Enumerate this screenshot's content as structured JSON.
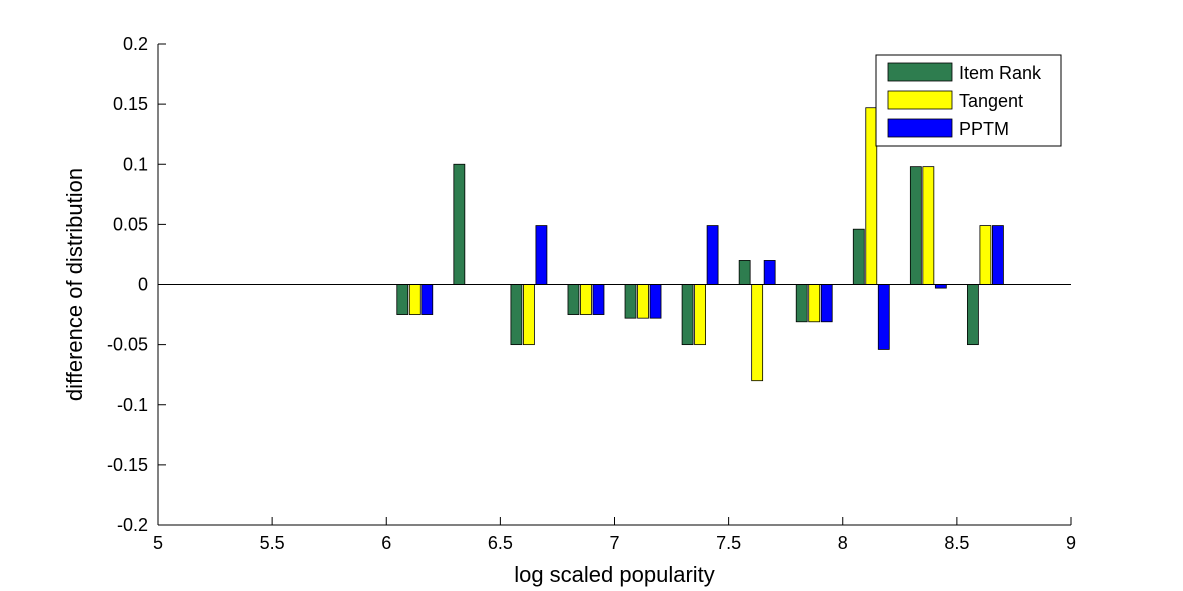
{
  "chart_data": {
    "type": "bar",
    "title": "",
    "xlabel": "log scaled popularity",
    "ylabel": "difference of distribution",
    "xlim": [
      5,
      9
    ],
    "ylim": [
      -0.2,
      0.2
    ],
    "xticks": [
      5,
      5.5,
      6,
      6.5,
      7,
      7.5,
      8,
      8.5,
      9
    ],
    "xtick_labels": [
      "5",
      "5.5",
      "6",
      "6.5",
      "7",
      "7.5",
      "8",
      "8.5",
      "9"
    ],
    "yticks": [
      -0.2,
      -0.15,
      -0.1,
      -0.05,
      0,
      0.05,
      0.1,
      0.15,
      0.2
    ],
    "ytick_labels": [
      "-0.2",
      "-0.15",
      "-0.1",
      "-0.05",
      "0",
      "0.05",
      "0.1",
      "0.15",
      "0.2"
    ],
    "grid": false,
    "legend_position": "top-right",
    "x": [
      6.125,
      6.375,
      6.625,
      6.875,
      7.125,
      7.375,
      7.625,
      7.875,
      8.125,
      8.375,
      8.625
    ],
    "series": [
      {
        "name": "Item Rank",
        "color": "#2e7d4f",
        "values": [
          -0.025,
          0.1,
          -0.05,
          -0.025,
          -0.028,
          -0.05,
          0.02,
          -0.031,
          0.046,
          0.098,
          -0.05
        ]
      },
      {
        "name": "Tangent",
        "color": "#ffff00",
        "values": [
          -0.025,
          0,
          -0.05,
          -0.025,
          -0.028,
          -0.05,
          -0.08,
          -0.031,
          0.147,
          0.098,
          0.049
        ]
      },
      {
        "name": "PPTM",
        "color": "#0000ff",
        "values": [
          -0.025,
          0,
          0.049,
          -0.025,
          -0.028,
          0.049,
          0.02,
          -0.031,
          -0.054,
          -0.003,
          0.049
        ]
      }
    ]
  }
}
